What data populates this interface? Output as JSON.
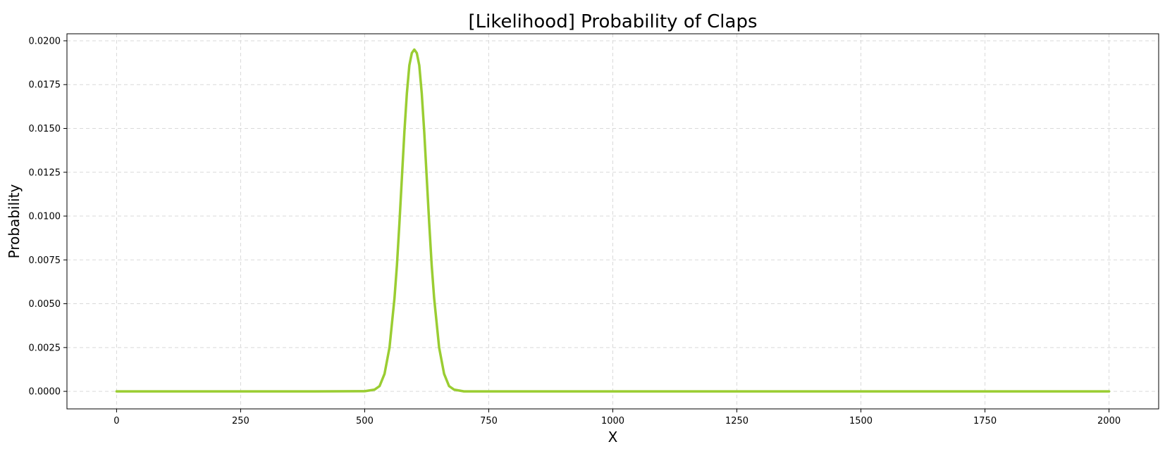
{
  "chart_data": {
    "type": "line",
    "title": "[Likelihood] Probability of Claps",
    "xlabel": "X",
    "ylabel": "Probability",
    "xlim": [
      -100,
      2100
    ],
    "ylim": [
      -0.001,
      0.0204
    ],
    "xticks": [
      0,
      250,
      500,
      750,
      1000,
      1250,
      1500,
      1750,
      2000
    ],
    "xtick_labels": [
      "0",
      "250",
      "500",
      "750",
      "1000",
      "1250",
      "1500",
      "1750",
      "2000"
    ],
    "yticks": [
      0,
      0.0025,
      0.005,
      0.0075,
      0.01,
      0.0125,
      0.015,
      0.0175,
      0.02
    ],
    "ytick_labels": [
      "0.0000",
      "0.0025",
      "0.0050",
      "0.0075",
      "0.0100",
      "0.0125",
      "0.0150",
      "0.0175",
      "0.0200"
    ],
    "grid": true,
    "legend": "none",
    "series": [
      {
        "color": "#9acd32",
        "x": [
          0,
          100,
          200,
          300,
          400,
          500,
          520,
          530,
          540,
          550,
          560,
          565,
          570,
          575,
          580,
          585,
          590,
          595,
          600,
          605,
          610,
          615,
          620,
          625,
          630,
          635,
          640,
          650,
          660,
          670,
          680,
          700,
          800,
          1000,
          1250,
          1500,
          1750,
          2000
        ],
        "y": [
          0,
          0,
          0,
          0,
          0,
          1e-05,
          0.0001,
          0.0003,
          0.001,
          0.0025,
          0.0053,
          0.0072,
          0.0096,
          0.0122,
          0.0148,
          0.017,
          0.0186,
          0.0193,
          0.0195,
          0.0193,
          0.0186,
          0.017,
          0.0148,
          0.0122,
          0.0096,
          0.0072,
          0.0053,
          0.0025,
          0.001,
          0.0003,
          0.0001,
          0,
          0,
          0,
          0,
          0,
          0,
          0
        ]
      }
    ]
  }
}
